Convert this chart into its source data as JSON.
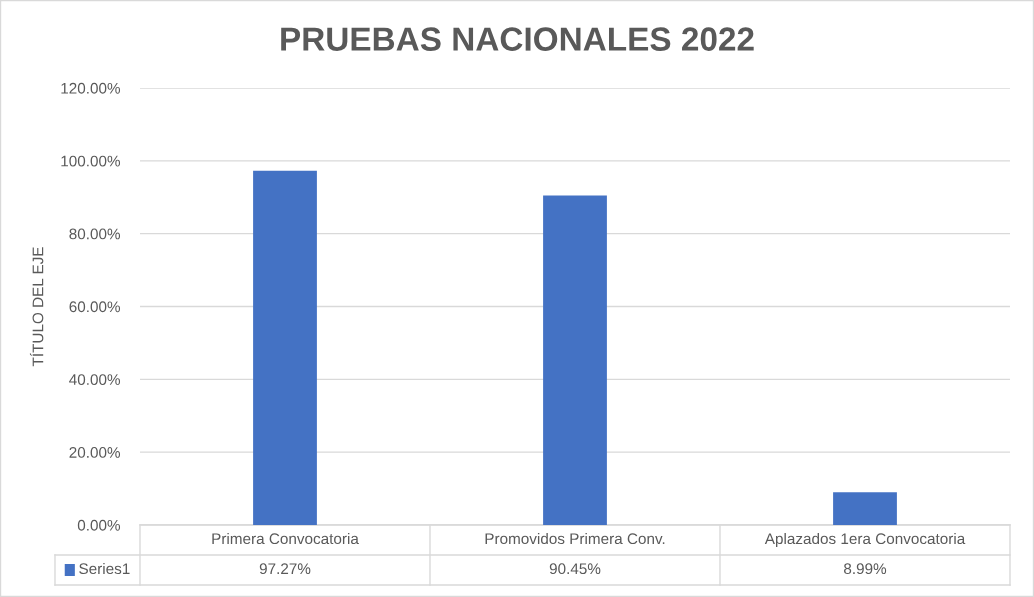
{
  "chart_data": {
    "type": "bar",
    "title": "PRUEBAS NACIONALES 2022",
    "ylabel": "TÍTULO DEL EJE",
    "categories": [
      "Primera Convocatoria",
      "Promovidos Primera Conv.",
      "Aplazados 1era Convocatoria"
    ],
    "series": [
      {
        "name": "Series1",
        "color": "#4472c4",
        "values": [
          97.27,
          90.45,
          8.99
        ],
        "value_labels": [
          "97.27%",
          "90.45%",
          "8.99%"
        ]
      }
    ],
    "ylim": [
      0,
      120
    ],
    "yticks": [
      {
        "value": 0,
        "label": "0.00%"
      },
      {
        "value": 20,
        "label": "20.00%"
      },
      {
        "value": 40,
        "label": "40.00%"
      },
      {
        "value": 60,
        "label": "60.00%"
      },
      {
        "value": 80,
        "label": "80.00%"
      },
      {
        "value": 100,
        "label": "100.00%"
      },
      {
        "value": 120,
        "label": "120.00%"
      }
    ],
    "grid": "y",
    "legend": "bottom"
  }
}
